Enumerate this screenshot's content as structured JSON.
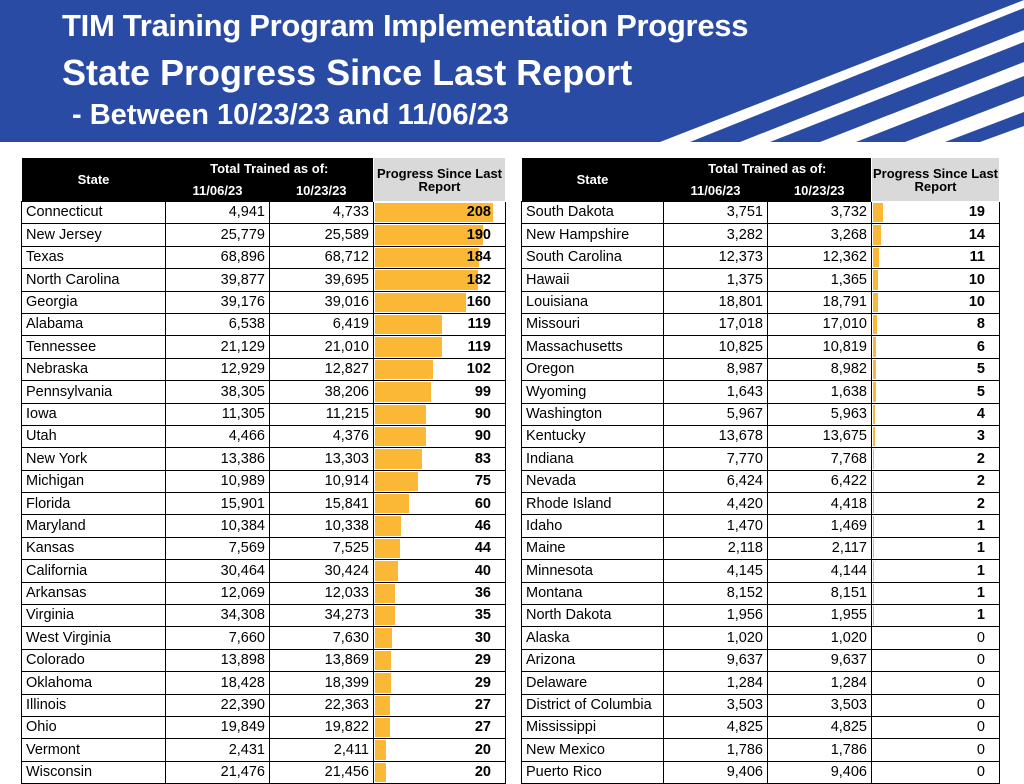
{
  "title": {
    "line1": "TIM Training Program Implementation Progress",
    "line2": "State Progress Since Last Report",
    "line3": "- Between 10/23/23 and 11/06/23"
  },
  "headers": {
    "state": "State",
    "total_trained": "Total Trained as of:",
    "date_new": "11/06/23",
    "date_old": "10/23/23",
    "progress": "Progress Since Last Report"
  },
  "colors": {
    "header_bg": "#2a4ba3",
    "bar": "#fbb836",
    "progress_header_bg": "#d9d9d9"
  },
  "max_progress": 208,
  "left_table": [
    {
      "state": "Connecticut",
      "new": "4,941",
      "old": "4,733",
      "progress": 208
    },
    {
      "state": "New Jersey",
      "new": "25,779",
      "old": "25,589",
      "progress": 190
    },
    {
      "state": "Texas",
      "new": "68,896",
      "old": "68,712",
      "progress": 184
    },
    {
      "state": "North Carolina",
      "new": "39,877",
      "old": "39,695",
      "progress": 182
    },
    {
      "state": "Georgia",
      "new": "39,176",
      "old": "39,016",
      "progress": 160
    },
    {
      "state": "Alabama",
      "new": "6,538",
      "old": "6,419",
      "progress": 119
    },
    {
      "state": "Tennessee",
      "new": "21,129",
      "old": "21,010",
      "progress": 119
    },
    {
      "state": "Nebraska",
      "new": "12,929",
      "old": "12,827",
      "progress": 102
    },
    {
      "state": "Pennsylvania",
      "new": "38,305",
      "old": "38,206",
      "progress": 99
    },
    {
      "state": "Iowa",
      "new": "11,305",
      "old": "11,215",
      "progress": 90
    },
    {
      "state": "Utah",
      "new": "4,466",
      "old": "4,376",
      "progress": 90
    },
    {
      "state": "New York",
      "new": "13,386",
      "old": "13,303",
      "progress": 83
    },
    {
      "state": "Michigan",
      "new": "10,989",
      "old": "10,914",
      "progress": 75
    },
    {
      "state": "Florida",
      "new": "15,901",
      "old": "15,841",
      "progress": 60
    },
    {
      "state": "Maryland",
      "new": "10,384",
      "old": "10,338",
      "progress": 46
    },
    {
      "state": "Kansas",
      "new": "7,569",
      "old": "7,525",
      "progress": 44
    },
    {
      "state": "California",
      "new": "30,464",
      "old": "30,424",
      "progress": 40
    },
    {
      "state": "Arkansas",
      "new": "12,069",
      "old": "12,033",
      "progress": 36
    },
    {
      "state": "Virginia",
      "new": "34,308",
      "old": "34,273",
      "progress": 35
    },
    {
      "state": "West Virginia",
      "new": "7,660",
      "old": "7,630",
      "progress": 30
    },
    {
      "state": "Colorado",
      "new": "13,898",
      "old": "13,869",
      "progress": 29
    },
    {
      "state": "Oklahoma",
      "new": "18,428",
      "old": "18,399",
      "progress": 29
    },
    {
      "state": "Illinois",
      "new": "22,390",
      "old": "22,363",
      "progress": 27
    },
    {
      "state": "Ohio",
      "new": "19,849",
      "old": "19,822",
      "progress": 27
    },
    {
      "state": "Vermont",
      "new": "2,431",
      "old": "2,411",
      "progress": 20
    },
    {
      "state": "Wisconsin",
      "new": "21,476",
      "old": "21,456",
      "progress": 20
    }
  ],
  "right_table": [
    {
      "state": "South Dakota",
      "new": "3,751",
      "old": "3,732",
      "progress": 19
    },
    {
      "state": "New Hampshire",
      "new": "3,282",
      "old": "3,268",
      "progress": 14
    },
    {
      "state": "South Carolina",
      "new": "12,373",
      "old": "12,362",
      "progress": 11
    },
    {
      "state": "Hawaii",
      "new": "1,375",
      "old": "1,365",
      "progress": 10
    },
    {
      "state": "Louisiana",
      "new": "18,801",
      "old": "18,791",
      "progress": 10
    },
    {
      "state": "Missouri",
      "new": "17,018",
      "old": "17,010",
      "progress": 8
    },
    {
      "state": "Massachusetts",
      "new": "10,825",
      "old": "10,819",
      "progress": 6
    },
    {
      "state": "Oregon",
      "new": "8,987",
      "old": "8,982",
      "progress": 5
    },
    {
      "state": "Wyoming",
      "new": "1,643",
      "old": "1,638",
      "progress": 5
    },
    {
      "state": "Washington",
      "new": "5,967",
      "old": "5,963",
      "progress": 4
    },
    {
      "state": "Kentucky",
      "new": "13,678",
      "old": "13,675",
      "progress": 3
    },
    {
      "state": "Indiana",
      "new": "7,770",
      "old": "7,768",
      "progress": 2
    },
    {
      "state": "Nevada",
      "new": "6,424",
      "old": "6,422",
      "progress": 2
    },
    {
      "state": "Rhode Island",
      "new": "4,420",
      "old": "4,418",
      "progress": 2
    },
    {
      "state": "Idaho",
      "new": "1,470",
      "old": "1,469",
      "progress": 1
    },
    {
      "state": "Maine",
      "new": "2,118",
      "old": "2,117",
      "progress": 1
    },
    {
      "state": "Minnesota",
      "new": "4,145",
      "old": "4,144",
      "progress": 1
    },
    {
      "state": "Montana",
      "new": "8,152",
      "old": "8,151",
      "progress": 1
    },
    {
      "state": "North Dakota",
      "new": "1,956",
      "old": "1,955",
      "progress": 1
    },
    {
      "state": "Alaska",
      "new": "1,020",
      "old": "1,020",
      "progress": 0
    },
    {
      "state": "Arizona",
      "new": "9,637",
      "old": "9,637",
      "progress": 0
    },
    {
      "state": "Delaware",
      "new": "1,284",
      "old": "1,284",
      "progress": 0
    },
    {
      "state": "District of Columbia",
      "new": "3,503",
      "old": "3,503",
      "progress": 0
    },
    {
      "state": "Mississippi",
      "new": "4,825",
      "old": "4,825",
      "progress": 0
    },
    {
      "state": "New Mexico",
      "new": "1,786",
      "old": "1,786",
      "progress": 0
    },
    {
      "state": "Puerto Rico",
      "new": "9,406",
      "old": "9,406",
      "progress": 0
    }
  ]
}
